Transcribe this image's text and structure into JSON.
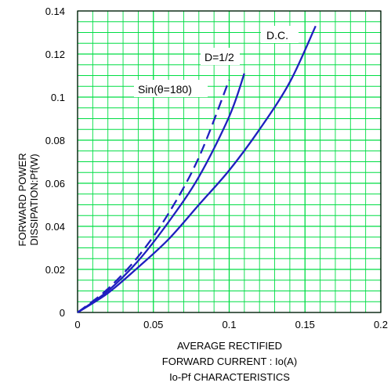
{
  "chart_data": {
    "type": "line",
    "ylabel_lines": [
      "FORWARD POWER",
      "DISSIPATION:Pf(W)"
    ],
    "xlabel_lines": [
      "AVERAGE RECTIFIED",
      "FORWARD CURRENT : Io(A)"
    ],
    "title": "Io-Pf CHARACTERISTICS",
    "xlim": [
      0,
      0.2
    ],
    "ylim": [
      0,
      0.14
    ],
    "x_ticks": [
      "0",
      "0.05",
      "0.1",
      "0.15",
      "0.2"
    ],
    "y_ticks": [
      "0",
      "0.02",
      "0.04",
      "0.06",
      "0.08",
      "0.1",
      "0.12",
      "0.14"
    ],
    "grid": true,
    "series": [
      {
        "name": "D.C.",
        "style": "solid",
        "x": [
          0,
          0.02,
          0.04,
          0.06,
          0.08,
          0.1,
          0.12,
          0.14,
          0.157
        ],
        "y": [
          0,
          0.009,
          0.021,
          0.034,
          0.05,
          0.066,
          0.085,
          0.107,
          0.133
        ]
      },
      {
        "name": "D=1/2",
        "style": "solid",
        "x": [
          0,
          0.02,
          0.04,
          0.06,
          0.08,
          0.1,
          0.11
        ],
        "y": [
          0,
          0.01,
          0.024,
          0.042,
          0.063,
          0.091,
          0.111
        ]
      },
      {
        "name": "Sin(θ=180)",
        "style": "dashed",
        "x": [
          0,
          0.02,
          0.04,
          0.06,
          0.08,
          0.1
        ],
        "y": [
          0,
          0.011,
          0.026,
          0.046,
          0.072,
          0.108
        ]
      }
    ]
  },
  "colors": {
    "grid": "#00dd44",
    "curve": "#1f1fbf",
    "axis": "#000000"
  }
}
